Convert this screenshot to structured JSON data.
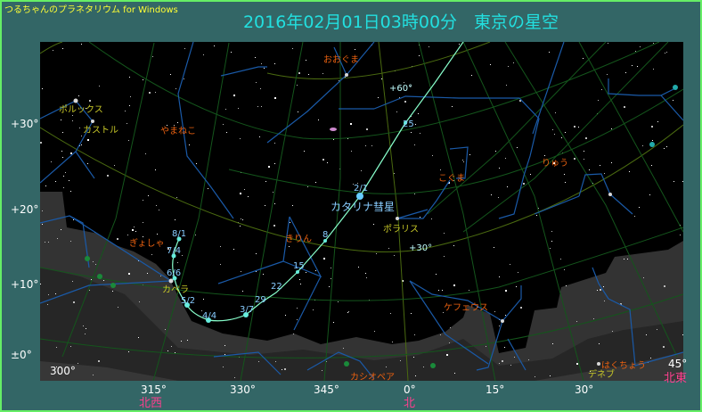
{
  "app_name": "つるちゃんのプラネタリウム for Windows",
  "title": "2016年02月01日03時00分　東京の星空",
  "colors": {
    "background": "#336666",
    "border": "#66ee66",
    "title": "#22e0e0",
    "constellation_label": "#e86010",
    "star_label": "#c8c828",
    "comet": "#88ffcc",
    "direction": "#ff3f8f"
  },
  "altitude_labels": [
    "+30°",
    "+20°",
    "+10°",
    "±0°"
  ],
  "azimuth_labels": [
    "300°",
    "315°",
    "330°",
    "345°",
    "0°",
    "15°",
    "30°",
    "45°"
  ],
  "directions": {
    "northwest": "北西",
    "north": "北",
    "northeast": "北東"
  },
  "grid_labels": {
    "dec60": "+60°",
    "dec30": "+30°"
  },
  "constellations": [
    "おおぐま",
    "やまねこ",
    "こぐま",
    "りゅう",
    "ぎょしゃ",
    "きりん",
    "ケフェウス",
    "カシオペア",
    "はくちょう"
  ],
  "stars": [
    "ポルックス",
    "カストル",
    "カペラ",
    "ポラリス",
    "デネブ"
  ],
  "comet": {
    "name": "カタリナ彗星",
    "dates": [
      "2/1",
      "8",
      "15",
      "22",
      "29",
      "3/7",
      "4/4",
      "5/2",
      "6/6",
      "7/4",
      "8/1",
      "25"
    ]
  }
}
